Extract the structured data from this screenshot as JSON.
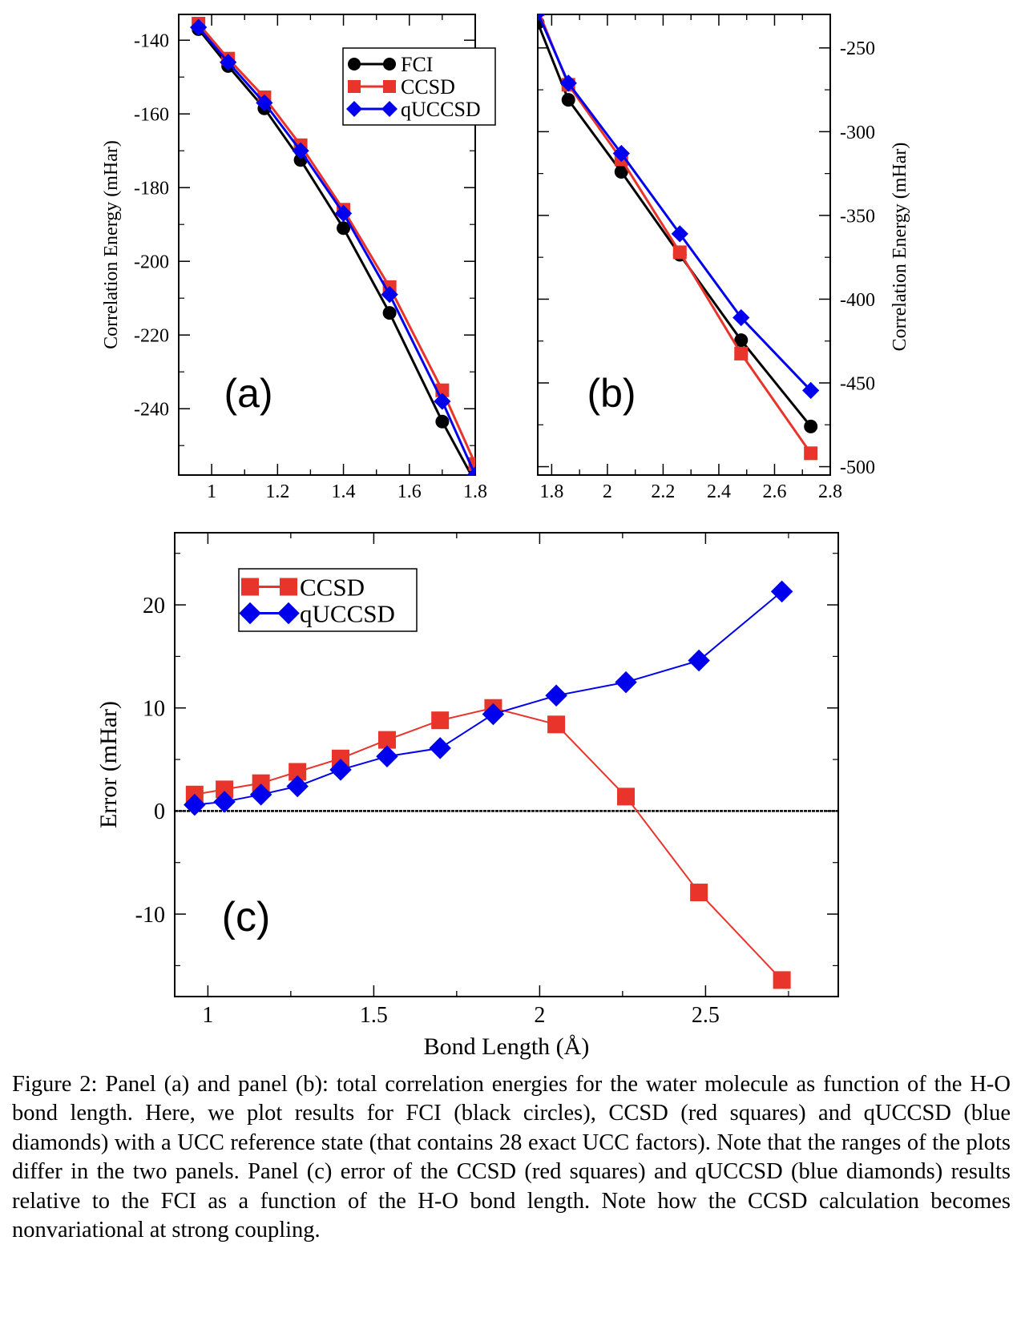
{
  "chart_data": [
    {
      "type": "line",
      "panel_label": "(a)",
      "ylabel": "Correlation Energy (mHar)",
      "xlim": [
        0.9,
        1.8
      ],
      "ylim": [
        -258,
        -133
      ],
      "xticks": [
        "1",
        "1.2",
        "1.4",
        "1.6",
        "1.8"
      ],
      "xtick_values": [
        1,
        1.2,
        1.4,
        1.6,
        1.8
      ],
      "yticks": [
        "-140",
        "-160",
        "-180",
        "-200",
        "-220",
        "-240"
      ],
      "ytick_values": [
        -140,
        -160,
        -180,
        -200,
        -220,
        -240
      ],
      "legend_position": "top-right",
      "series": [
        {
          "name": "FCI",
          "color": "#000000",
          "marker": "circle",
          "x": [
            0.96,
            1.05,
            1.16,
            1.27,
            1.4,
            1.54,
            1.7,
            1.8
          ],
          "y": [
            -137,
            -147,
            -158.5,
            -172.5,
            -191,
            -214,
            -243.5,
            -260
          ]
        },
        {
          "name": "CCSD",
          "color": "#e8342b",
          "marker": "square",
          "x": [
            0.96,
            1.05,
            1.16,
            1.27,
            1.4,
            1.54,
            1.7,
            1.8
          ],
          "y": [
            -135.5,
            -145,
            -155.5,
            -168.5,
            -186,
            -207,
            -235,
            -255
          ]
        },
        {
          "name": "qUCCSD",
          "color": "#0000ee",
          "marker": "diamond",
          "x": [
            0.96,
            1.05,
            1.16,
            1.27,
            1.4,
            1.54,
            1.7,
            1.8
          ],
          "y": [
            -136.5,
            -146,
            -157,
            -170,
            -187,
            -209,
            -238,
            -258
          ]
        }
      ]
    },
    {
      "type": "line",
      "panel_label": "(b)",
      "ylabel": "Correlation Energy (mHar)",
      "yaxis_side": "right",
      "xlim": [
        1.75,
        2.8
      ],
      "ylim": [
        -505,
        -230
      ],
      "xticks": [
        "1.8",
        "2",
        "2.2",
        "2.4",
        "2.6",
        "2.8"
      ],
      "xtick_values": [
        1.8,
        2.0,
        2.2,
        2.4,
        2.6,
        2.8
      ],
      "yticks": [
        "-250",
        "-300",
        "-350",
        "-400",
        "-450",
        "-500"
      ],
      "ytick_values": [
        -250,
        -300,
        -350,
        -400,
        -450,
        -500
      ],
      "series": [
        {
          "name": "FCI",
          "color": "#000000",
          "marker": "circle",
          "x": [
            1.75,
            1.86,
            2.05,
            2.26,
            2.48,
            2.73
          ],
          "y": [
            -235,
            -281,
            -324,
            -373.5,
            -424.5,
            -476
          ]
        },
        {
          "name": "CCSD",
          "color": "#e8342b",
          "marker": "square",
          "x": [
            1.75,
            1.86,
            2.05,
            2.26,
            2.48,
            2.73
          ],
          "y": [
            -227,
            -272,
            -316.5,
            -372,
            -432.5,
            -492
          ]
        },
        {
          "name": "qUCCSD",
          "color": "#0000ee",
          "marker": "diamond",
          "x": [
            1.75,
            1.86,
            2.05,
            2.26,
            2.48,
            2.73
          ],
          "y": [
            -229,
            -271,
            -313,
            -361,
            -411,
            -454.5
          ]
        }
      ]
    },
    {
      "type": "line",
      "panel_label": "(c)",
      "xlabel": "Bond Length (Å)",
      "ylabel": "Error (mHar)",
      "xlim": [
        0.9,
        2.9
      ],
      "ylim": [
        -18,
        27
      ],
      "xticks": [
        "1",
        "1.5",
        "2",
        "2.5"
      ],
      "xtick_values": [
        1,
        1.5,
        2,
        2.5
      ],
      "yticks": [
        "20",
        "10",
        "0",
        "-10"
      ],
      "ytick_values": [
        20,
        10,
        0,
        -10
      ],
      "reference_line_y": 0,
      "legend_position": "top-left",
      "series": [
        {
          "name": "CCSD",
          "color": "#e8342b",
          "marker": "square",
          "x": [
            0.96,
            1.05,
            1.16,
            1.27,
            1.4,
            1.54,
            1.7,
            1.86,
            2.05,
            2.26,
            2.48,
            2.73
          ],
          "y": [
            1.6,
            2.1,
            2.7,
            3.8,
            5.1,
            6.9,
            8.8,
            10.0,
            8.4,
            1.4,
            -7.9,
            -16.4
          ]
        },
        {
          "name": "qUCCSD",
          "color": "#0000ee",
          "marker": "diamond",
          "x": [
            0.96,
            1.05,
            1.16,
            1.27,
            1.4,
            1.54,
            1.7,
            1.86,
            2.05,
            2.26,
            2.48,
            2.73
          ],
          "y": [
            0.6,
            0.9,
            1.6,
            2.4,
            4.0,
            5.3,
            6.1,
            9.4,
            11.2,
            12.5,
            14.6,
            21.3
          ]
        }
      ]
    }
  ],
  "caption": "Figure 2: Panel (a) and panel (b): total correlation energies for the water molecule as function of the H-O bond length. Here, we plot results for FCI (black circles), CCSD (red squares) and qUCCSD (blue diamonds) with a UCC reference state (that contains 28 exact UCC factors). Note that the ranges of the plots differ in the two panels. Panel (c) error of the CCSD (red squares) and qUCCSD (blue diamonds) results relative to the FCI as a function of the H-O bond length. Note how the CCSD calculation becomes nonvariational at strong coupling."
}
